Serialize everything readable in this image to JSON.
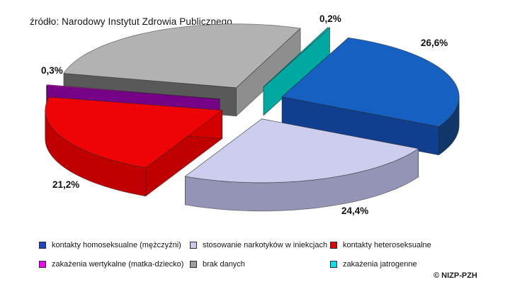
{
  "chart_data": {
    "type": "pie",
    "projection": "3d-exploded",
    "title": "źródło: Narodowy Instytut Zdrowia Publicznego",
    "legend_position": "bottom",
    "slices": [
      {
        "name": "kontakty homoseksualne (mężczyźni)",
        "value": 26.6,
        "label": "26,6%",
        "color": "#1660c2",
        "side": "#113669",
        "cut": "#0f3f8e"
      },
      {
        "name": "stosowanie narkotyków w iniekcjach",
        "value": 24.4,
        "label": "24,4%",
        "color": "#cdcdee",
        "side": "#9494b6",
        "cut": "#b3b3d4"
      },
      {
        "name": "kontakty heteroseksualne",
        "value": 21.2,
        "label": "21,2%",
        "color": "#ee0404",
        "side": "#c00000",
        "cut": "#d40000"
      },
      {
        "name": "zakażenia wertykalne (matka-dziecko)",
        "value": 0.3,
        "label": "0,3%",
        "color": "#c403c4",
        "side": "#5e0270",
        "cut": "#760288"
      },
      {
        "name": "brak danych",
        "value": 27.3,
        "label": "",
        "color": "#b2b2b2",
        "side": "#595959",
        "cut": "#8e8e8e"
      },
      {
        "name": "zakażenia jatrogenne",
        "value": 0.2,
        "label": "0,2%",
        "color": "#00c4be",
        "side": "#00918c",
        "cut": "#00a8a2"
      }
    ]
  },
  "legend": {
    "items": [
      {
        "label": "kontakty homoseksualne (mężczyźni)",
        "color": "#1d46c0"
      },
      {
        "label": "stosowanie narkotyków w iniekcjach",
        "color": "#c9c9ec"
      },
      {
        "label": "kontakty heteroseksualne",
        "color": "#dd0202"
      },
      {
        "label": "zakażenia wertykalne (matka-dziecko)",
        "color": "#f202f2"
      },
      {
        "label": "brak danych",
        "color": "#9d9d9d"
      },
      {
        "label": "zakażenia jatrogenne",
        "color": "#00e2e6"
      }
    ]
  },
  "footer": {
    "copyright": "© NIZP-PZH"
  }
}
